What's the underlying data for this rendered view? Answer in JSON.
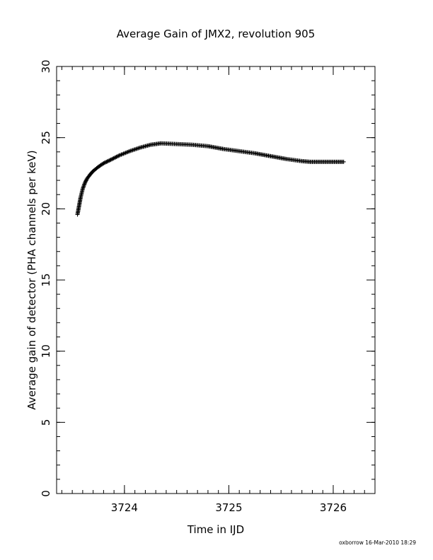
{
  "chart_data": {
    "type": "scatter",
    "title": "Average Gain of JMX2, revolution 905",
    "xlabel": "Time in IJD",
    "ylabel": "Average gain of detector (PHA channels per keV)",
    "footer": "oxborrow 16-Mar-2010 18:29",
    "xlim": [
      3723.35,
      3726.4
    ],
    "ylim": [
      0,
      30
    ],
    "x_major_ticks": [
      3724,
      3725,
      3726
    ],
    "x_minor_step": 0.1,
    "y_major_ticks": [
      0,
      5,
      10,
      15,
      20,
      25,
      30
    ],
    "y_minor_step": 1,
    "grid": false,
    "marker": "plus",
    "series": [
      {
        "points": [
          [
            3723.55,
            19.6
          ],
          [
            3723.56,
            20.0
          ],
          [
            3723.57,
            20.4
          ],
          [
            3723.58,
            20.8
          ],
          [
            3723.59,
            21.1
          ],
          [
            3723.6,
            21.4
          ],
          [
            3723.62,
            21.8
          ],
          [
            3723.64,
            22.1
          ],
          [
            3723.67,
            22.4
          ],
          [
            3723.7,
            22.65
          ],
          [
            3723.75,
            22.95
          ],
          [
            3723.8,
            23.2
          ],
          [
            3723.87,
            23.45
          ],
          [
            3723.95,
            23.75
          ],
          [
            3724.05,
            24.05
          ],
          [
            3724.15,
            24.3
          ],
          [
            3724.25,
            24.5
          ],
          [
            3724.35,
            24.6
          ],
          [
            3724.5,
            24.55
          ],
          [
            3724.65,
            24.5
          ],
          [
            3724.8,
            24.4
          ],
          [
            3724.95,
            24.2
          ],
          [
            3725.1,
            24.05
          ],
          [
            3725.25,
            23.9
          ],
          [
            3725.4,
            23.7
          ],
          [
            3725.55,
            23.5
          ],
          [
            3725.7,
            23.35
          ],
          [
            3725.78,
            23.3
          ],
          [
            3725.9,
            23.3
          ],
          [
            3726.0,
            23.3
          ],
          [
            3726.1,
            23.3
          ]
        ]
      }
    ]
  }
}
